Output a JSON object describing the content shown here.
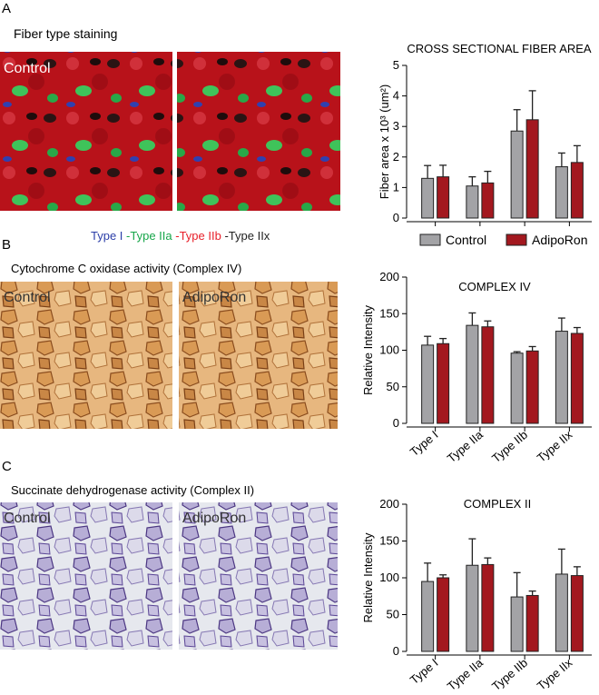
{
  "panels": [
    {
      "label": "A",
      "title": "Fiber type staining",
      "image_labels": [
        "Control"
      ],
      "stain_legend": [
        {
          "text": "Type I",
          "color": "#2b3ea8"
        },
        {
          "text": "-Type IIa",
          "color": "#17a64a"
        },
        {
          "text": "-Type IIb",
          "color": "#e8202a"
        },
        {
          "text": "-Type IIx",
          "color": "#222222"
        }
      ]
    },
    {
      "label": "B",
      "title": "Cytochrome C oxidase activity (Complex IV)",
      "image_labels": [
        "Control",
        "AdipoRon"
      ]
    },
    {
      "label": "C",
      "title": "Succinate dehydrogenase activity  (Complex II)",
      "image_labels": [
        "Control",
        "AdipoRon"
      ]
    }
  ],
  "chart_data": [
    {
      "type": "bar",
      "title": "CROSS SECTIONAL FIBER AREA",
      "y_label": "Fiber area x 10³ (um²)",
      "ylim": [
        0,
        5
      ],
      "yticks": [
        0,
        1,
        2,
        3,
        4,
        5
      ],
      "legend": "bottom",
      "series": [
        {
          "name": "Control",
          "color": "#a3a3a6",
          "values": [
            1.3,
            1.05,
            2.85,
            1.68
          ],
          "errors": [
            0.42,
            0.3,
            0.7,
            0.45
          ]
        },
        {
          "name": "AdipoRon",
          "color": "#a3181f",
          "values": [
            1.35,
            1.15,
            3.22,
            1.82
          ],
          "errors": [
            0.38,
            0.38,
            0.95,
            0.55
          ]
        }
      ]
    },
    {
      "type": "bar",
      "title": "COMPLEX IV",
      "y_label": "Relative Intensity",
      "ylim": [
        0,
        200
      ],
      "yticks": [
        0,
        50,
        100,
        150,
        200
      ],
      "categories": [
        "Type I",
        "Type IIa",
        "Type IIb",
        "Type IIx"
      ],
      "series": [
        {
          "color": "#a3a3a6",
          "values": [
            107,
            134,
            96,
            126
          ],
          "errors": [
            12,
            17,
            2,
            18
          ]
        },
        {
          "color": "#a3181f",
          "values": [
            109,
            132,
            99,
            123
          ],
          "errors": [
            7,
            8,
            6,
            8
          ]
        }
      ]
    },
    {
      "type": "bar",
      "title": "COMPLEX II",
      "y_label": "Relative Intensity",
      "ylim": [
        0,
        200
      ],
      "yticks": [
        0,
        50,
        100,
        150,
        200
      ],
      "categories": [
        "Type I",
        "Type IIa",
        "Type IIb",
        "Type IIx"
      ],
      "series": [
        {
          "color": "#a3a3a6",
          "values": [
            95,
            117,
            74,
            105
          ],
          "errors": [
            25,
            36,
            33,
            34
          ]
        },
        {
          "color": "#a3181f",
          "values": [
            100,
            118,
            76,
            103
          ],
          "errors": [
            4,
            9,
            6,
            12
          ]
        }
      ]
    }
  ]
}
